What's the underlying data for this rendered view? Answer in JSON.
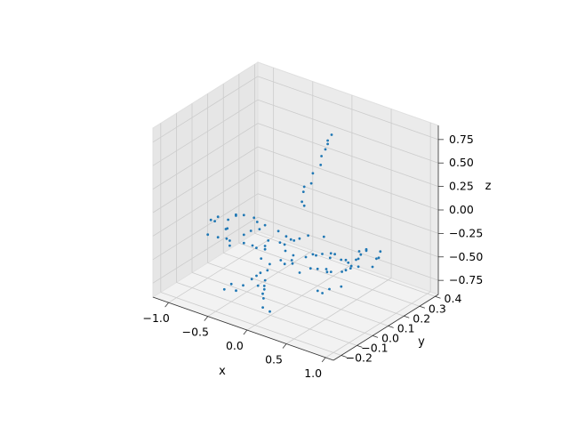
{
  "chart_data": {
    "type": "scatter",
    "projection": "3d",
    "title": "",
    "xlabel": "x",
    "ylabel": "y",
    "zlabel": "z",
    "xlim": [
      -1.2,
      1.1
    ],
    "ylim": [
      -0.25,
      0.42
    ],
    "zlim": [
      -0.9,
      0.9
    ],
    "xticks": [
      {
        "value": -1.0,
        "label": "−1.0"
      },
      {
        "value": -0.5,
        "label": "−0.5"
      },
      {
        "value": 0.0,
        "label": "0.0"
      },
      {
        "value": 0.5,
        "label": "0.5"
      },
      {
        "value": 1.0,
        "label": "1.0"
      }
    ],
    "yticks": [
      {
        "value": -0.2,
        "label": "−0.2"
      },
      {
        "value": -0.1,
        "label": "−0.1"
      },
      {
        "value": 0.0,
        "label": "0.0"
      },
      {
        "value": 0.1,
        "label": "0.1"
      },
      {
        "value": 0.2,
        "label": "0.2"
      },
      {
        "value": 0.3,
        "label": "0.3"
      },
      {
        "value": 0.4,
        "label": "0.4"
      }
    ],
    "zticks": [
      {
        "value": -0.75,
        "label": "−0.75"
      },
      {
        "value": -0.5,
        "label": "−0.50"
      },
      {
        "value": -0.25,
        "label": "−0.25"
      },
      {
        "value": 0.0,
        "label": "0.00"
      },
      {
        "value": 0.25,
        "label": "0.25"
      },
      {
        "value": 0.5,
        "label": "0.50"
      },
      {
        "value": 0.75,
        "label": "0.75"
      }
    ],
    "grid": true,
    "point_color": "#1f77b4",
    "pane_color": "#f2f2f2",
    "grid_color": "#cccccc",
    "series": [
      {
        "points": [
          [
            -0.95,
            0.02,
            -0.3
          ],
          [
            -0.9,
            -0.03,
            -0.22
          ],
          [
            -0.85,
            0.05,
            -0.38
          ],
          [
            -0.8,
            0.08,
            -0.25
          ],
          [
            -0.75,
            -0.06,
            -0.33
          ],
          [
            -0.7,
            0.03,
            -0.18
          ],
          [
            -0.65,
            0.1,
            -0.4
          ],
          [
            -0.6,
            -0.08,
            -0.28
          ],
          [
            -0.55,
            0.07,
            -0.2
          ],
          [
            -0.5,
            -0.02,
            -0.36
          ],
          [
            -0.45,
            0.09,
            -0.27
          ],
          [
            -0.4,
            -0.07,
            -0.19
          ],
          [
            -0.35,
            0.04,
            -0.41
          ],
          [
            -0.3,
            0.1,
            -0.3
          ],
          [
            -0.25,
            -0.09,
            -0.24
          ],
          [
            -0.2,
            0.06,
            -0.35
          ],
          [
            -0.15,
            -0.04,
            -0.21
          ],
          [
            -0.1,
            0.08,
            -0.31
          ],
          [
            -0.05,
            -0.08,
            -0.39
          ],
          [
            0.0,
            0.05,
            -0.26
          ],
          [
            0.05,
            -0.06,
            -0.34
          ],
          [
            0.1,
            0.09,
            -0.22
          ],
          [
            0.15,
            -0.03,
            -0.29
          ],
          [
            0.2,
            0.07,
            -0.37
          ],
          [
            0.25,
            -0.09,
            -0.25
          ],
          [
            0.3,
            0.04,
            -0.32
          ],
          [
            0.35,
            -0.05,
            -0.23
          ],
          [
            0.4,
            0.08,
            -0.36
          ],
          [
            0.45,
            -0.07,
            -0.3
          ],
          [
            0.5,
            0.06,
            -0.27
          ],
          [
            0.55,
            -0.02,
            -0.33
          ],
          [
            0.6,
            0.05,
            -0.29
          ],
          [
            0.65,
            -0.04,
            -0.31
          ],
          [
            0.7,
            0.03,
            -0.35
          ],
          [
            0.75,
            -0.02,
            -0.3
          ],
          [
            -0.92,
            0.09,
            -0.35
          ],
          [
            -0.82,
            -0.09,
            -0.29
          ],
          [
            -0.72,
            0.0,
            -0.42
          ],
          [
            -0.62,
            0.04,
            -0.16
          ],
          [
            -0.52,
            -0.1,
            -0.31
          ],
          [
            -0.42,
            0.02,
            -0.43
          ],
          [
            -0.32,
            -0.01,
            -0.17
          ],
          [
            -0.22,
            0.1,
            -0.42
          ],
          [
            -0.12,
            -0.1,
            -0.33
          ],
          [
            -0.02,
            0.01,
            -0.18
          ],
          [
            0.08,
            0.0,
            -0.43
          ],
          [
            0.18,
            -0.1,
            -0.3
          ],
          [
            0.28,
            0.1,
            -0.19
          ],
          [
            0.38,
            0.01,
            -0.41
          ],
          [
            0.48,
            -0.01,
            -0.2
          ],
          [
            0.58,
            0.09,
            -0.34
          ],
          [
            0.68,
            -0.08,
            -0.26
          ],
          [
            -0.87,
            0.0,
            -0.21
          ],
          [
            -0.67,
            -0.05,
            -0.23
          ],
          [
            -0.47,
            0.05,
            -0.2
          ],
          [
            -0.27,
            0.0,
            -0.38
          ],
          [
            -0.07,
            0.03,
            -0.37
          ],
          [
            0.13,
            0.02,
            -0.17
          ],
          [
            0.33,
            -0.08,
            -0.37
          ],
          [
            0.53,
            0.02,
            -0.21
          ],
          [
            0.8,
            0.01,
            -0.28
          ],
          [
            0.85,
            -0.01,
            -0.22
          ],
          [
            0.9,
            0.01,
            -0.15
          ],
          [
            0.95,
            0.0,
            -0.08
          ],
          [
            1.0,
            0.01,
            -0.02
          ],
          [
            0.88,
            0.02,
            -0.25
          ],
          [
            0.93,
            -0.02,
            -0.12
          ],
          [
            0.98,
            0.02,
            -0.05
          ],
          [
            0.83,
            -0.02,
            -0.18
          ],
          [
            0.87,
            0.03,
            -0.1
          ],
          [
            0.8,
            -0.2,
            -0.3
          ],
          [
            0.85,
            -0.15,
            -0.32
          ],
          [
            0.9,
            -0.1,
            -0.33
          ],
          [
            0.8,
            0.2,
            -0.3
          ],
          [
            0.85,
            0.15,
            -0.31
          ],
          [
            0.9,
            0.1,
            -0.33
          ],
          [
            0.82,
            -0.18,
            -0.34
          ],
          [
            0.82,
            0.18,
            -0.34
          ],
          [
            0.0,
            0.1,
            0.1
          ],
          [
            0.02,
            0.15,
            0.25
          ],
          [
            0.04,
            0.2,
            0.4
          ],
          [
            0.06,
            0.22,
            0.55
          ],
          [
            0.08,
            0.25,
            0.68
          ],
          [
            -0.02,
            0.12,
            0.18
          ],
          [
            0.0,
            0.17,
            0.33
          ],
          [
            0.03,
            0.21,
            0.48
          ],
          [
            0.05,
            0.24,
            0.62
          ],
          [
            0.01,
            0.11,
            0.05
          ],
          [
            -0.03,
            0.13,
            0.22
          ],
          [
            0.07,
            0.23,
            0.6
          ],
          [
            0.0,
            -0.12,
            -0.4
          ],
          [
            0.05,
            -0.16,
            -0.45
          ],
          [
            0.1,
            -0.19,
            -0.5
          ],
          [
            0.15,
            -0.22,
            -0.55
          ],
          [
            0.2,
            -0.25,
            -0.6
          ],
          [
            -0.05,
            -0.14,
            -0.42
          ],
          [
            -0.1,
            -0.17,
            -0.47
          ],
          [
            -0.15,
            -0.2,
            -0.52
          ],
          [
            -0.2,
            -0.22,
            -0.57
          ],
          [
            0.08,
            -0.18,
            -0.48
          ],
          [
            -0.08,
            -0.15,
            -0.45
          ],
          [
            0.12,
            -0.21,
            -0.52
          ],
          [
            -0.3,
            -0.2,
            -0.55
          ],
          [
            -0.35,
            -0.22,
            -0.6
          ],
          [
            0.25,
            -0.23,
            -0.65
          ],
          [
            0.0,
            -0.18,
            -0.5
          ]
        ]
      }
    ]
  }
}
